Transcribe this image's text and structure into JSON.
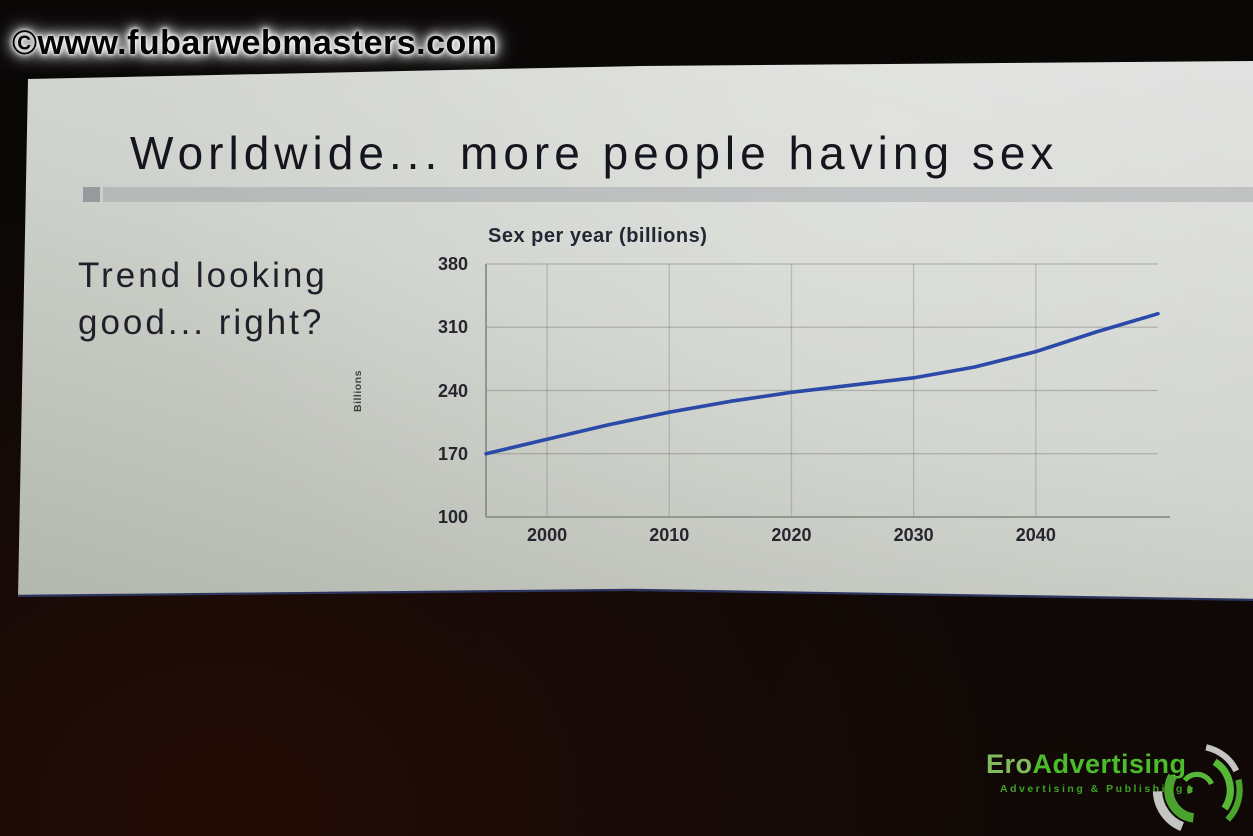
{
  "watermark": {
    "text": "©www.fubarwebmasters.com"
  },
  "slide": {
    "title": "Worldwide... more people having sex",
    "note_lines": [
      "Trend looking",
      "good... right?"
    ]
  },
  "chart_data": {
    "type": "line",
    "title": "Sex per year (billions)",
    "xlabel": "",
    "ylabel": "Billions",
    "xlim": [
      1995,
      2050
    ],
    "ylim": [
      100,
      380
    ],
    "x_ticks": [
      2000,
      2010,
      2020,
      2030,
      2040
    ],
    "y_ticks": [
      100,
      170,
      240,
      310,
      380
    ],
    "grid": true,
    "legend_position": "none",
    "line_color": "#2b49a8",
    "series": [
      {
        "name": "Sex per year (billions)",
        "x": [
          1995,
          2000,
          2005,
          2010,
          2015,
          2020,
          2025,
          2030,
          2035,
          2040,
          2045,
          2050
        ],
        "y": [
          170,
          186,
          202,
          216,
          228,
          238,
          246,
          254,
          266,
          283,
          305,
          325
        ]
      }
    ]
  },
  "logo": {
    "brand_ero": "Ero",
    "brand_advertising": "Advertising",
    "tagline": "Advertising & Publishing",
    "green": "#4cbb2c",
    "gray": "#c4c4c4"
  }
}
